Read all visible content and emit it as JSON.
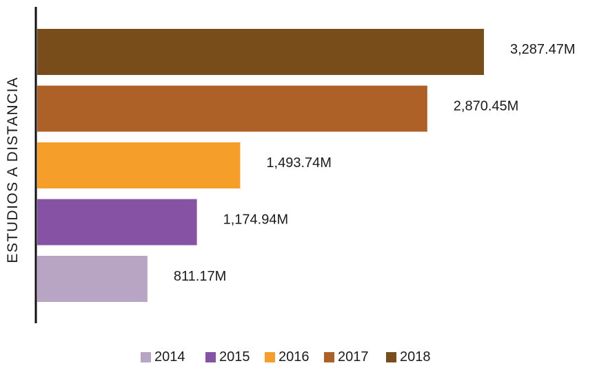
{
  "chart_data": {
    "type": "bar",
    "orientation": "horizontal",
    "ylabel": "ESTUDIOS A DISTANCIA",
    "series": [
      {
        "name": "2014",
        "value": 811.17,
        "label": "811.17M",
        "color": "#b8a5c4"
      },
      {
        "name": "2015",
        "value": 1174.94,
        "label": "1,174.94M",
        "color": "#8652a4"
      },
      {
        "name": "2016",
        "value": 1493.74,
        "label": "1,493.74M",
        "color": "#f59e2a"
      },
      {
        "name": "2017",
        "value": 2870.45,
        "label": "2,870.45M",
        "color": "#ad6127"
      },
      {
        "name": "2018",
        "value": 3287.47,
        "label": "3,287.47M",
        "color": "#794d1a"
      }
    ],
    "order_top_to_bottom": [
      "2018",
      "2017",
      "2016",
      "2015",
      "2014"
    ],
    "legend_position": "bottom",
    "grid": false
  }
}
